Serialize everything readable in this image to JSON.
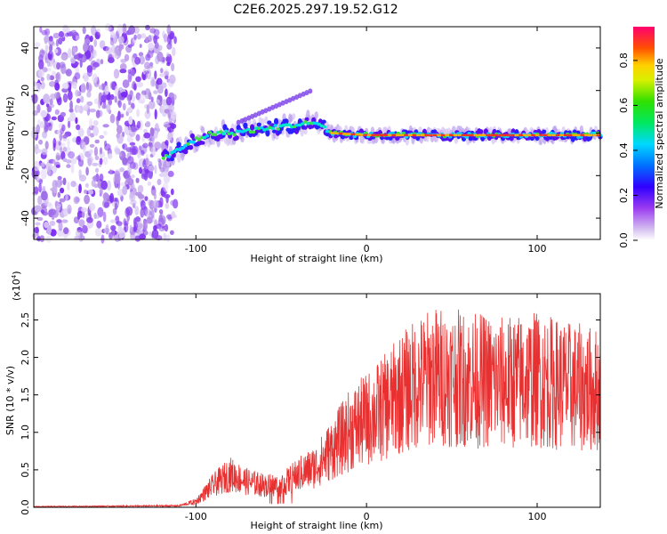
{
  "title": "C2E6.2025.297.19.52.G12",
  "chart_data": [
    {
      "type": "heatmap",
      "name": "spectrogram",
      "xlabel": "Height of straight line (km)",
      "ylabel": "Frequency (Hz)",
      "xlim": [
        -195,
        137
      ],
      "ylim": [
        -50,
        50
      ],
      "xticks": [
        -100,
        0,
        100
      ],
      "yticks": [
        -40,
        -20,
        0,
        20,
        40
      ],
      "colorbar": {
        "label": "Normalized spectral amplitude",
        "ticks": [
          "0.0",
          "0.2",
          "0.4",
          "0.6",
          "0.8"
        ],
        "range": [
          0,
          0.95
        ]
      },
      "ridge": {
        "description_x": [
          -119,
          -110,
          -100,
          -90,
          -80,
          -60,
          -40,
          -30,
          -20,
          0,
          50,
          100,
          137
        ],
        "frequency_hz": [
          -12,
          -8,
          -3,
          0,
          0,
          2,
          4,
          5,
          0,
          -1,
          -1,
          -1,
          -1
        ]
      }
    },
    {
      "type": "line",
      "name": "snr",
      "xlabel": "Height of straight line (km)",
      "ylabel": "SNR (10 * v/v)",
      "scale_label": "(x10",
      "scale_exp": "4",
      "xlim": [
        -195,
        137
      ],
      "ylim": [
        0,
        2.85
      ],
      "xticks": [
        -100,
        0,
        100
      ],
      "yticks": [
        "0.0",
        "0.5",
        "1.0",
        "1.5",
        "2.0",
        "2.5"
      ],
      "ytick_values": [
        0,
        0.5,
        1.0,
        1.5,
        2.0,
        2.5
      ],
      "envelope_x": [
        -195,
        -110,
        -100,
        -90,
        -80,
        -70,
        -60,
        -50,
        -40,
        -30,
        -20,
        -10,
        0,
        10,
        20,
        30,
        40,
        60,
        80,
        100,
        120,
        137
      ],
      "envelope_y": [
        0.01,
        0.02,
        0.08,
        0.3,
        0.45,
        0.35,
        0.3,
        0.3,
        0.45,
        0.55,
        0.8,
        1.05,
        1.2,
        1.35,
        1.55,
        1.7,
        1.8,
        1.75,
        1.7,
        1.75,
        1.65,
        1.6
      ],
      "color": "#e83030"
    }
  ]
}
